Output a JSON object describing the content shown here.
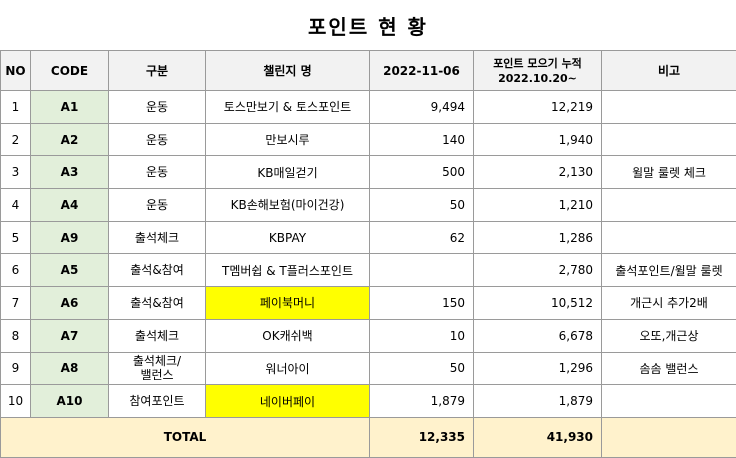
{
  "title": "포인트 현 황",
  "headers": {
    "no": "NO",
    "code": "CODE",
    "category": "구분",
    "challenge": "챌린지 명",
    "date": "2022-11-06",
    "cumulative_line1": "포인트 모으기 누적",
    "cumulative_line2": "2022.10.20~",
    "note": "비고"
  },
  "rows": [
    {
      "no": "1",
      "code": "A1",
      "category": "운동",
      "challenge": "토스만보기 & 토스포인트",
      "date": "9,494",
      "cumulative": "12,219",
      "note": ""
    },
    {
      "no": "2",
      "code": "A2",
      "category": "운동",
      "challenge": "만보시루",
      "date": "140",
      "cumulative": "1,940",
      "note": ""
    },
    {
      "no": "3",
      "code": "A3",
      "category": "운동",
      "challenge": "KB매일걷기",
      "date": "500",
      "cumulative": "2,130",
      "note": "윌말 룰렛 체크"
    },
    {
      "no": "4",
      "code": "A4",
      "category": "운동",
      "challenge": "KB손해보험(마이건강)",
      "date": "50",
      "cumulative": "1,210",
      "note": ""
    },
    {
      "no": "5",
      "code": "A9",
      "category": "출석체크",
      "challenge": "KBPAY",
      "date": "62",
      "cumulative": "1,286",
      "note": ""
    },
    {
      "no": "6",
      "code": "A5",
      "category": "출석&참여",
      "challenge": "T멤버쉽 & T플러스포인트",
      "date": "",
      "cumulative": "2,780",
      "note": "출석포인트/윌말 룰렛"
    },
    {
      "no": "7",
      "code": "A6",
      "category": "출석&참여",
      "challenge": "페이북머니",
      "date": "150",
      "cumulative": "10,512",
      "note": "개근시 추가2배"
    },
    {
      "no": "8",
      "code": "A7",
      "category": "출석체크",
      "challenge": "OK캐쉬백",
      "date": "10",
      "cumulative": "6,678",
      "note": "오또,개근상"
    },
    {
      "no": "9",
      "code": "A8",
      "category": "출석체크/ 밸런스",
      "challenge": "워너아이",
      "date": "50",
      "cumulative": "1,296",
      "note": "솜솜 밸런스"
    },
    {
      "no": "10",
      "code": "A10",
      "category": "참여포인트",
      "challenge": "네이버페이",
      "date": "1,879",
      "cumulative": "1,879",
      "note": ""
    }
  ],
  "total": {
    "label": "TOTAL",
    "date": "12,335",
    "cumulative": "41,930",
    "note": ""
  },
  "colors": {
    "code_bg": "#e2efda",
    "highlight": "#ffff00",
    "total_bg": "#fff2cc",
    "header_bg": "#f2f2f2"
  },
  "highlighted_challenges": [
    6,
    9
  ]
}
